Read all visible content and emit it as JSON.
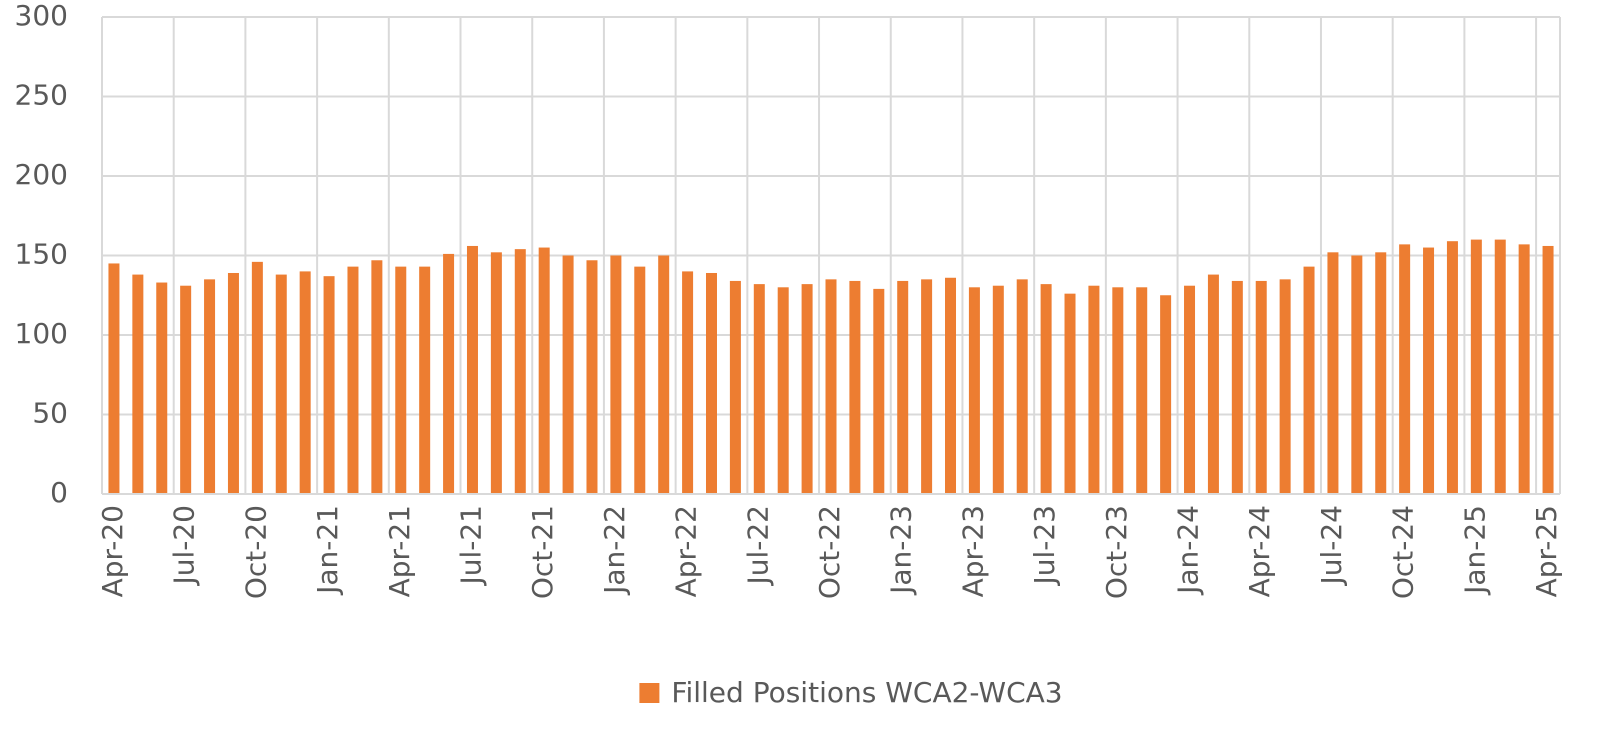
{
  "chart_data": {
    "type": "bar",
    "categories": [
      "Apr-20",
      null,
      null,
      "Jul-20",
      null,
      null,
      "Oct-20",
      null,
      null,
      "Jan-21",
      null,
      null,
      "Apr-21",
      null,
      null,
      "Jul-21",
      null,
      null,
      "Oct-21",
      null,
      null,
      "Jan-22",
      null,
      null,
      "Apr-22",
      null,
      null,
      "Jul-22",
      null,
      null,
      "Oct-22",
      null,
      null,
      "Jan-23",
      null,
      null,
      "Apr-23",
      null,
      null,
      "Jul-23",
      null,
      null,
      "Oct-23",
      null,
      null,
      "Jan-24",
      null,
      null,
      "Apr-24",
      null,
      null,
      "Jul-24",
      null,
      null,
      "Oct-24",
      null,
      null,
      "Jan-25",
      null,
      null,
      "Apr-25"
    ],
    "series": [
      {
        "name": "Filled Positions WCA2-WCA3",
        "color": "#ed7d31",
        "values": [
          145,
          138,
          133,
          131,
          135,
          139,
          146,
          138,
          140,
          137,
          143,
          147,
          143,
          143,
          151,
          156,
          152,
          154,
          155,
          150,
          147,
          150,
          143,
          150,
          140,
          139,
          134,
          132,
          130,
          132,
          135,
          134,
          129,
          134,
          135,
          136,
          130,
          131,
          135,
          132,
          126,
          131,
          130,
          130,
          125,
          131,
          138,
          134,
          134,
          135,
          143,
          152,
          150,
          152,
          157,
          155,
          159,
          160,
          160,
          157,
          156
        ]
      }
    ],
    "ylim": [
      0,
      300
    ],
    "yticks": [
      0,
      50,
      100,
      150,
      200,
      250,
      300
    ],
    "grid": true,
    "legend": "bottom"
  }
}
